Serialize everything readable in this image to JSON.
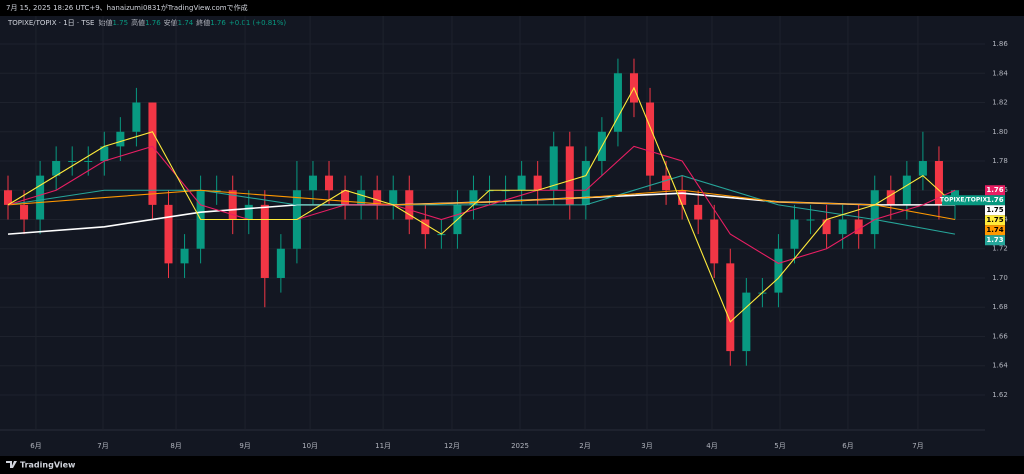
{
  "header": "7月 15, 2025 18:26 UTC+9、hanaizumi0831がTradingView.comで作成",
  "footer": "TradingView",
  "legend": {
    "symbol": "TOPIXE/TOPIX · 1日 · TSE",
    "open_label": "始値",
    "open": 1.75,
    "high_label": "高値",
    "high": 1.76,
    "low_label": "安値",
    "low": 1.74,
    "close_label": "終値",
    "close": 1.76,
    "change": "+0.01 (+0.81%)"
  },
  "chart_data": {
    "type": "candlestick",
    "symbol_tag": "TOPIXE/TOPIX",
    "up_color": "#089981",
    "down_color": "#f23645",
    "xlim": [
      0,
      59
    ],
    "xticks": [
      {
        "value": 1.74,
        "label": "6月"
      },
      {
        "value": 5.92,
        "label": "7月"
      },
      {
        "value": 10.47,
        "label": "8月"
      },
      {
        "value": 14.77,
        "label": "9月"
      },
      {
        "value": 18.82,
        "label": "10月"
      },
      {
        "value": 23.37,
        "label": "11月"
      },
      {
        "value": 27.66,
        "label": "12月"
      },
      {
        "value": 31.9,
        "label": "2025"
      },
      {
        "value": 35.95,
        "label": "2月"
      },
      {
        "value": 39.81,
        "label": "3月"
      },
      {
        "value": 43.86,
        "label": "4月"
      },
      {
        "value": 48.1,
        "label": "5月"
      },
      {
        "value": 52.33,
        "label": "6月"
      },
      {
        "value": 56.69,
        "label": "7月"
      }
    ],
    "ylim": [
      1.605,
      1.87
    ],
    "yticks": [
      1.62,
      1.64,
      1.66,
      1.68,
      {
        "value": 1.7,
        "label": "1.70"
      },
      1.72,
      1.74,
      1.76,
      1.78,
      {
        "value": 1.8,
        "label": "1.80"
      },
      1.82,
      1.84,
      1.86
    ],
    "grid": true,
    "candles": {
      "open": [
        1.76,
        1.75,
        1.74,
        1.77,
        1.78,
        1.78,
        1.78,
        1.79,
        1.8,
        1.82,
        1.75,
        1.71,
        1.72,
        1.76,
        1.76,
        1.74,
        1.75,
        1.7,
        1.72,
        1.76,
        1.77,
        1.76,
        1.75,
        1.76,
        1.75,
        1.76,
        1.74,
        1.73,
        1.73,
        1.75,
        1.76,
        1.76,
        1.76,
        1.77,
        1.76,
        1.79,
        1.75,
        1.78,
        1.8,
        1.84,
        1.82,
        1.77,
        1.76,
        1.75,
        1.74,
        1.71,
        1.65,
        1.69,
        1.69,
        1.72,
        1.74,
        1.74,
        1.73,
        1.74,
        1.73,
        1.76,
        1.75,
        1.77,
        1.78,
        1.75
      ],
      "high": [
        1.77,
        1.76,
        1.78,
        1.79,
        1.79,
        1.79,
        1.8,
        1.81,
        1.83,
        1.82,
        1.76,
        1.73,
        1.77,
        1.77,
        1.77,
        1.76,
        1.76,
        1.73,
        1.78,
        1.78,
        1.78,
        1.77,
        1.77,
        1.77,
        1.77,
        1.77,
        1.75,
        1.74,
        1.76,
        1.77,
        1.77,
        1.77,
        1.78,
        1.78,
        1.8,
        1.8,
        1.79,
        1.81,
        1.85,
        1.85,
        1.83,
        1.78,
        1.77,
        1.76,
        1.75,
        1.72,
        1.7,
        1.7,
        1.73,
        1.75,
        1.75,
        1.75,
        1.75,
        1.75,
        1.77,
        1.77,
        1.78,
        1.8,
        1.79,
        1.76
      ],
      "low": [
        1.74,
        1.73,
        1.73,
        1.76,
        1.77,
        1.77,
        1.77,
        1.78,
        1.79,
        1.74,
        1.7,
        1.7,
        1.71,
        1.75,
        1.73,
        1.73,
        1.68,
        1.69,
        1.71,
        1.75,
        1.75,
        1.74,
        1.74,
        1.74,
        1.74,
        1.73,
        1.72,
        1.72,
        1.72,
        1.74,
        1.75,
        1.75,
        1.75,
        1.75,
        1.75,
        1.74,
        1.74,
        1.77,
        1.79,
        1.81,
        1.76,
        1.75,
        1.74,
        1.73,
        1.7,
        1.64,
        1.64,
        1.68,
        1.68,
        1.71,
        1.73,
        1.72,
        1.72,
        1.72,
        1.72,
        1.74,
        1.74,
        1.76,
        1.74,
        1.74
      ],
      "close": [
        1.75,
        1.74,
        1.77,
        1.78,
        1.78,
        1.78,
        1.79,
        1.8,
        1.82,
        1.75,
        1.71,
        1.72,
        1.76,
        1.76,
        1.74,
        1.75,
        1.7,
        1.72,
        1.76,
        1.77,
        1.76,
        1.75,
        1.76,
        1.75,
        1.76,
        1.74,
        1.73,
        1.73,
        1.75,
        1.76,
        1.76,
        1.76,
        1.77,
        1.76,
        1.79,
        1.75,
        1.78,
        1.8,
        1.84,
        1.82,
        1.77,
        1.76,
        1.75,
        1.74,
        1.71,
        1.65,
        1.69,
        1.69,
        1.72,
        1.74,
        1.74,
        1.73,
        1.74,
        1.73,
        1.76,
        1.75,
        1.77,
        1.78,
        1.75,
        1.76
      ]
    },
    "lines": [
      {
        "color": "#ffffff",
        "x": [
          0,
          6,
          12,
          18,
          24,
          30,
          36,
          42,
          48,
          54,
          59
        ],
        "values": [
          1.73,
          1.735,
          1.745,
          1.75,
          1.75,
          1.752,
          1.755,
          1.758,
          1.752,
          1.75,
          1.75
        ]
      },
      {
        "color": "#26a69a",
        "x": [
          0,
          6,
          12,
          18,
          24,
          30,
          36,
          42,
          48,
          54,
          59
        ],
        "values": [
          1.75,
          1.76,
          1.76,
          1.75,
          1.75,
          1.75,
          1.75,
          1.77,
          1.75,
          1.74,
          1.73
        ]
      },
      {
        "color": "#ff9800",
        "x": [
          0,
          6,
          12,
          18,
          24,
          30,
          36,
          42,
          48,
          54,
          59
        ],
        "values": [
          1.75,
          1.755,
          1.76,
          1.755,
          1.75,
          1.752,
          1.755,
          1.76,
          1.752,
          1.75,
          1.74
        ]
      },
      {
        "color": "#e91e63",
        "x": [
          0,
          3,
          6,
          9,
          12,
          15,
          18,
          21,
          24,
          27,
          30,
          33,
          36,
          39,
          42,
          45,
          48,
          51,
          54,
          57,
          59
        ],
        "values": [
          1.75,
          1.76,
          1.78,
          1.79,
          1.75,
          1.74,
          1.74,
          1.75,
          1.75,
          1.74,
          1.75,
          1.76,
          1.76,
          1.79,
          1.78,
          1.73,
          1.71,
          1.72,
          1.74,
          1.75,
          1.76
        ]
      },
      {
        "color": "#ffeb3b",
        "x": [
          0,
          3,
          6,
          9,
          12,
          15,
          18,
          21,
          24,
          27,
          30,
          33,
          36,
          39,
          42,
          45,
          48,
          51,
          54,
          57,
          59
        ],
        "values": [
          1.75,
          1.77,
          1.79,
          1.8,
          1.74,
          1.74,
          1.74,
          1.76,
          1.75,
          1.73,
          1.76,
          1.76,
          1.77,
          1.83,
          1.75,
          1.67,
          1.7,
          1.74,
          1.75,
          1.77,
          1.75
        ]
      }
    ]
  }
}
